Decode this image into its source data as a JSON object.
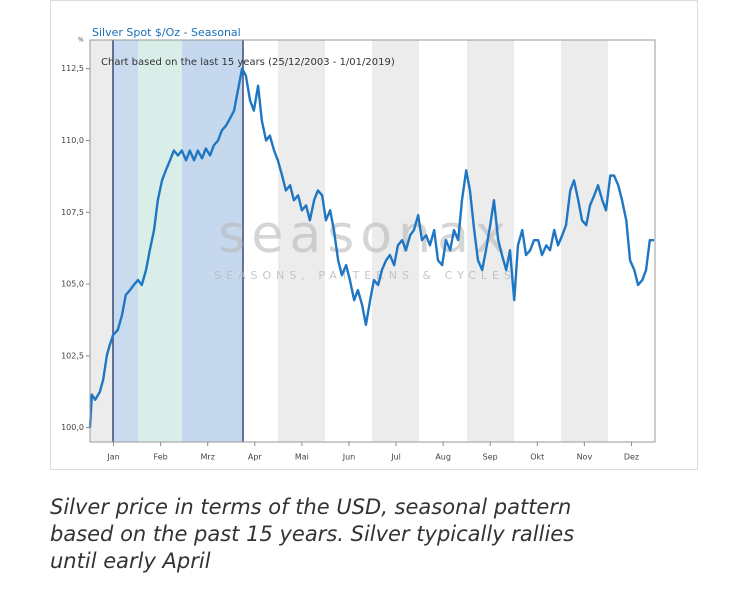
{
  "chart_data": {
    "type": "line",
    "title": "Silver Spot  $/Oz - Seasonal",
    "y_unit": "%",
    "subtitle": "Chart based on the last 15 years (25/12/2003 - 1/01/2019)",
    "watermark": "seasonax",
    "watermark_tagline": "SEASONS, PATTERNS & CYCLES",
    "caption": [
      "Silver price in terms of the USD, seasonal pattern",
      "based on the past 15 years. Silver typically rallies",
      "until early April"
    ],
    "color": "#1f77c4",
    "xlim": [
      0,
      12
    ],
    "ylim": [
      99.5,
      113.5
    ],
    "xticks": [
      {
        "value": 0.5,
        "label": "Jan"
      },
      {
        "value": 1.5,
        "label": "Feb"
      },
      {
        "value": 2.5,
        "label": "Mrz"
      },
      {
        "value": 3.5,
        "label": "Apr"
      },
      {
        "value": 4.5,
        "label": "Mai"
      },
      {
        "value": 5.5,
        "label": "Jun"
      },
      {
        "value": 6.5,
        "label": "Jul"
      },
      {
        "value": 7.5,
        "label": "Aug"
      },
      {
        "value": 8.5,
        "label": "Sep"
      },
      {
        "value": 9.5,
        "label": "Okt"
      },
      {
        "value": 10.5,
        "label": "Nov"
      },
      {
        "value": 11.5,
        "label": "Dez"
      }
    ],
    "yticks": [
      {
        "value": 100,
        "label": "100,0"
      },
      {
        "value": 102.5,
        "label": "102,5"
      },
      {
        "value": 105,
        "label": "105,0"
      },
      {
        "value": 107.5,
        "label": "107,5"
      },
      {
        "value": 110,
        "label": "110,0"
      },
      {
        "value": 112.5,
        "label": "112,5"
      }
    ],
    "x": [
      0,
      0.04,
      0.11,
      0.21,
      0.28,
      0.36,
      0.42,
      0.49,
      0.59,
      0.68,
      0.76,
      0.85,
      0.93,
      1.02,
      1.1,
      1.19,
      1.27,
      1.36,
      1.44,
      1.53,
      1.61,
      1.7,
      1.78,
      1.87,
      1.95,
      2.04,
      2.12,
      2.21,
      2.29,
      2.38,
      2.46,
      2.55,
      2.63,
      2.72,
      2.8,
      2.89,
      2.97,
      3.06,
      3.14,
      3.23,
      3.31,
      3.4,
      3.48,
      3.57,
      3.65,
      3.74,
      3.82,
      3.91,
      3.99,
      4.08,
      4.16,
      4.25,
      4.33,
      4.42,
      4.5,
      4.59,
      4.67,
      4.76,
      4.84,
      4.93,
      5.01,
      5.1,
      5.18,
      5.27,
      5.35,
      5.44,
      5.52,
      5.61,
      5.69,
      5.78,
      5.86,
      5.95,
      6.03,
      6.12,
      6.2,
      6.29,
      6.37,
      6.46,
      6.54,
      6.63,
      6.71,
      6.8,
      6.88,
      6.97,
      7.05,
      7.14,
      7.22,
      7.31,
      7.39,
      7.48,
      7.56,
      7.65,
      7.73,
      7.82,
      7.9,
      7.99,
      8.07,
      8.16,
      8.24,
      8.33,
      8.41,
      8.5,
      8.58,
      8.67,
      8.75,
      8.84,
      8.92,
      9.01,
      9.09,
      9.18,
      9.26,
      9.35,
      9.43,
      9.52,
      9.6,
      9.69,
      9.77,
      9.86,
      9.94,
      10.03,
      10.11,
      10.2,
      10.28,
      10.37,
      10.45,
      10.54,
      10.62,
      10.71,
      10.79,
      10.88,
      10.96,
      11.05,
      11.13,
      11.22,
      11.3,
      11.39,
      11.47,
      11.56,
      11.64,
      11.73,
      11.81,
      11.89,
      11.98
    ],
    "values": [
      100.0,
      101.15,
      100.97,
      101.25,
      101.67,
      102.53,
      102.88,
      103.23,
      103.4,
      103.92,
      104.62,
      104.79,
      104.97,
      105.14,
      104.97,
      105.49,
      106.18,
      106.88,
      107.92,
      108.61,
      108.96,
      109.31,
      109.65,
      109.48,
      109.65,
      109.31,
      109.65,
      109.31,
      109.65,
      109.38,
      109.72,
      109.48,
      109.83,
      110.0,
      110.35,
      110.52,
      110.76,
      111.04,
      111.74,
      112.5,
      112.26,
      111.39,
      111.04,
      111.91,
      110.69,
      110.0,
      110.17,
      109.65,
      109.31,
      108.78,
      108.26,
      108.44,
      107.92,
      108.09,
      107.57,
      107.74,
      107.22,
      107.92,
      108.26,
      108.09,
      107.22,
      107.57,
      106.88,
      105.83,
      105.31,
      105.66,
      105.14,
      104.44,
      104.79,
      104.27,
      103.58,
      104.44,
      105.14,
      104.97,
      105.49,
      105.83,
      106.01,
      105.66,
      106.35,
      106.53,
      106.18,
      106.7,
      106.88,
      107.4,
      106.53,
      106.7,
      106.35,
      106.88,
      105.83,
      105.66,
      106.53,
      106.18,
      106.88,
      106.53,
      107.92,
      108.96,
      108.26,
      106.88,
      105.83,
      105.49,
      106.18,
      107.05,
      107.92,
      106.53,
      106.01,
      105.49,
      106.18,
      104.44,
      106.35,
      106.88,
      106.01,
      106.18,
      106.53,
      106.53,
      106.01,
      106.35,
      106.18,
      106.88,
      106.35,
      106.7,
      107.05,
      108.26,
      108.61,
      107.92,
      107.22,
      107.05,
      107.74,
      108.09,
      108.44,
      107.92,
      107.57,
      108.78,
      108.78,
      108.44,
      107.92,
      107.22,
      105.83,
      105.49,
      104.97,
      105.14,
      105.49,
      106.53,
      106.53
    ]
  }
}
